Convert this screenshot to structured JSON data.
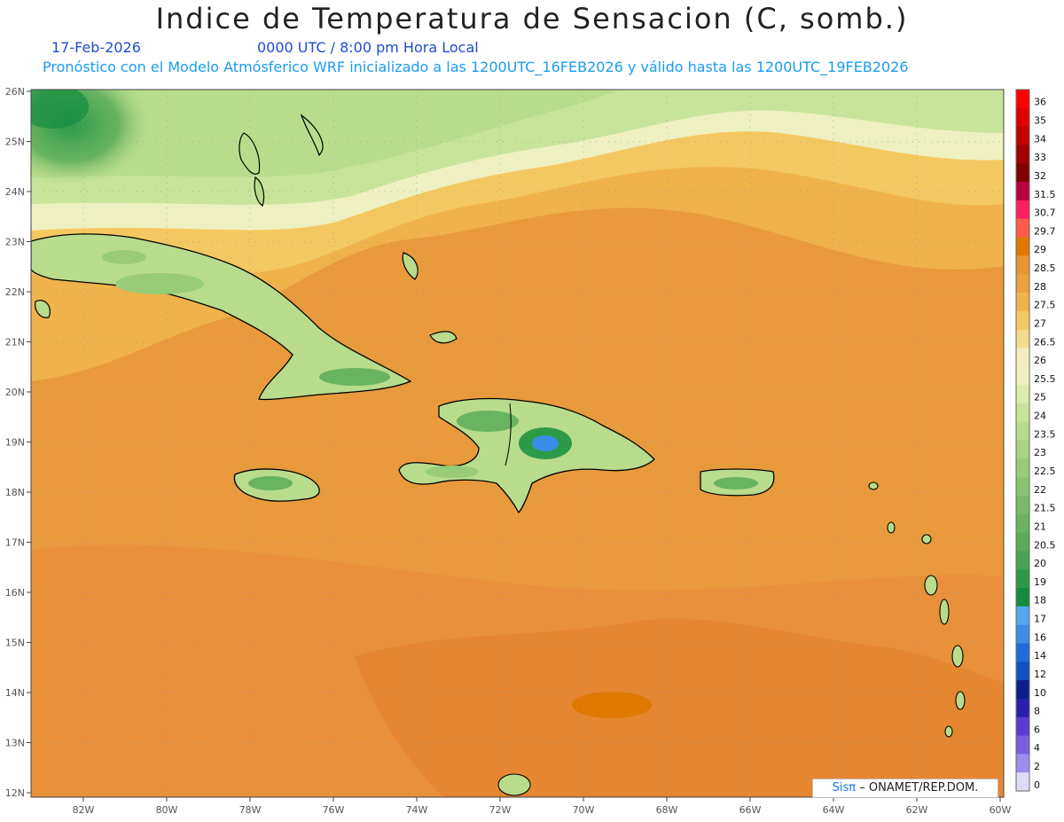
{
  "title": "Indice de Temperatura de Sensacion (C, somb.)",
  "date_line": "17-Feb-2026",
  "time_line": "0000 UTC / 8:00 pm Hora Local",
  "model_line": "Pronóstico con el Modelo Atmósferico WRF inicializado a las 1200UTC_16FEB2026 y válido hasta las  1200UTC_19FEB2026",
  "credit": {
    "brand": "Sisπ",
    "text": "– ONAMET/REP.DOM."
  },
  "lat_labels": [
    "26N",
    "25N",
    "24N",
    "23N",
    "22N",
    "21N",
    "20N",
    "19N",
    "18N",
    "17N",
    "16N",
    "15N",
    "14N",
    "13N",
    "12N"
  ],
  "lon_labels": [
    "82W",
    "80W",
    "78W",
    "76W",
    "74W",
    "72W",
    "70W",
    "68W",
    "66W",
    "64W",
    "62W",
    "60W"
  ],
  "colorbar": {
    "labels": [
      "36",
      "35",
      "34",
      "33",
      "32",
      "31.5",
      "30.7",
      "29.7",
      "29",
      "28.5",
      "28",
      "27.5",
      "27",
      "26.5",
      "26",
      "25.5",
      "25",
      "24",
      "23.5",
      "23",
      "22.5",
      "22",
      "21.5",
      "21",
      "20.5",
      "20",
      "19",
      "18",
      "17",
      "16",
      "14",
      "12",
      "10",
      "8",
      "6",
      "4",
      "2",
      "0"
    ],
    "colors": [
      "#ff0000",
      "#e00000",
      "#c40000",
      "#a00000",
      "#800000",
      "#b80040",
      "#ff1e60",
      "#ff5a4a",
      "#e07800",
      "#e89430",
      "#eca040",
      "#f0b24a",
      "#f4c860",
      "#f4dc8c",
      "#f4ecbc",
      "#eef0c0",
      "#dcecaa",
      "#c8e49a",
      "#b8dc8c",
      "#a8d482",
      "#98cc78",
      "#88c470",
      "#78bc68",
      "#68b460",
      "#58ac58",
      "#48a452",
      "#2e9a48",
      "#148c40",
      "#54a8f0",
      "#3c8ce8",
      "#1e6cd8",
      "#1050c0",
      "#0a1e8c",
      "#2a1eaa",
      "#5a3cd2",
      "#7a60e0",
      "#a08cf0",
      "#dcdcf8"
    ]
  },
  "map": {
    "field": "Indice de Temperatura de Sensacion",
    "units": "C",
    "region": "Caribe",
    "lon_range": [
      "83W",
      "60W"
    ],
    "lat_range": [
      "12N",
      "26N"
    ]
  }
}
